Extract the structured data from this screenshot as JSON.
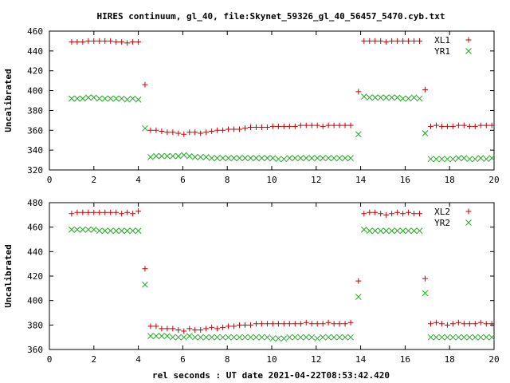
{
  "figure": {
    "title": "HIRES continuum, gl_40, file:Skynet_59326_gl_40_56457_5470.cyb.txt",
    "xlabel": "rel seconds : UT date 2021-04-22T08:53:42.420"
  },
  "colors": {
    "xl": "#cc0000",
    "yr": "#22aa22"
  },
  "chart_data": [
    {
      "type": "scatter",
      "title": "",
      "xlabel": "",
      "ylabel": "Uncalibrated",
      "xlim": [
        0,
        20
      ],
      "ylim": [
        320,
        460
      ],
      "xticks": [
        0,
        2,
        4,
        6,
        8,
        10,
        12,
        14,
        16,
        18,
        20
      ],
      "yticks": [
        320,
        340,
        360,
        380,
        400,
        420,
        440,
        460
      ],
      "legend": "top-right",
      "series": [
        {
          "name": "XL1",
          "marker": "plus",
          "x": [
            1.0,
            1.25,
            1.5,
            1.75,
            2.0,
            2.25,
            2.5,
            2.75,
            3.0,
            3.25,
            3.5,
            3.75,
            4.0,
            4.3,
            4.55,
            4.8,
            5.05,
            5.3,
            5.55,
            5.8,
            6.05,
            6.3,
            6.55,
            6.8,
            7.05,
            7.3,
            7.55,
            7.8,
            8.05,
            8.3,
            8.55,
            8.8,
            9.05,
            9.3,
            9.55,
            9.8,
            10.05,
            10.3,
            10.55,
            10.8,
            11.05,
            11.3,
            11.55,
            11.8,
            12.05,
            12.3,
            12.55,
            12.8,
            13.05,
            13.3,
            13.55,
            13.9,
            14.15,
            14.4,
            14.65,
            14.9,
            15.15,
            15.4,
            15.65,
            15.9,
            16.15,
            16.4,
            16.65,
            16.9,
            17.15,
            17.4,
            17.65,
            17.9,
            18.15,
            18.4,
            18.65,
            18.9,
            19.15,
            19.4,
            19.65,
            19.9
          ],
          "y": [
            449,
            449,
            449,
            450,
            450,
            450,
            450,
            450,
            449,
            449,
            448,
            449,
            449,
            406,
            360,
            360,
            359,
            358,
            358,
            357,
            356,
            358,
            358,
            357,
            358,
            359,
            360,
            360,
            361,
            361,
            361,
            362,
            363,
            363,
            363,
            363,
            364,
            364,
            364,
            364,
            364,
            365,
            365,
            365,
            365,
            364,
            365,
            365,
            365,
            365,
            365,
            399,
            450,
            450,
            450,
            450,
            449,
            450,
            450,
            450,
            450,
            450,
            450,
            401,
            364,
            365,
            364,
            364,
            364,
            365,
            365,
            364,
            364,
            365,
            365,
            365
          ]
        },
        {
          "name": "YR1",
          "marker": "cross",
          "x": [
            1.0,
            1.25,
            1.5,
            1.75,
            2.0,
            2.25,
            2.5,
            2.75,
            3.0,
            3.25,
            3.5,
            3.75,
            4.0,
            4.3,
            4.55,
            4.8,
            5.05,
            5.3,
            5.55,
            5.8,
            6.05,
            6.3,
            6.55,
            6.8,
            7.05,
            7.3,
            7.55,
            7.8,
            8.05,
            8.3,
            8.55,
            8.8,
            9.05,
            9.3,
            9.55,
            9.8,
            10.05,
            10.3,
            10.55,
            10.8,
            11.05,
            11.3,
            11.55,
            11.8,
            12.05,
            12.3,
            12.55,
            12.8,
            13.05,
            13.3,
            13.55,
            13.9,
            14.15,
            14.4,
            14.65,
            14.9,
            15.15,
            15.4,
            15.65,
            15.9,
            16.15,
            16.4,
            16.65,
            16.9,
            17.15,
            17.4,
            17.65,
            17.9,
            18.15,
            18.4,
            18.65,
            18.9,
            19.15,
            19.4,
            19.65,
            19.9
          ],
          "y": [
            392,
            392,
            392,
            393,
            393,
            392,
            392,
            392,
            392,
            392,
            391,
            392,
            391,
            362,
            333,
            334,
            334,
            334,
            334,
            334,
            335,
            334,
            333,
            333,
            333,
            332,
            332,
            332,
            332,
            332,
            332,
            332,
            332,
            332,
            332,
            332,
            332,
            331,
            331,
            332,
            332,
            332,
            332,
            332,
            332,
            332,
            332,
            332,
            332,
            332,
            332,
            356,
            394,
            393,
            393,
            393,
            393,
            393,
            393,
            392,
            392,
            393,
            392,
            357,
            331,
            331,
            331,
            331,
            331,
            332,
            332,
            331,
            331,
            332,
            331,
            332
          ]
        }
      ]
    },
    {
      "type": "scatter",
      "title": "",
      "xlabel": "rel seconds : UT date 2021-04-22T08:53:42.420",
      "ylabel": "Uncalibrated",
      "xlim": [
        0,
        20
      ],
      "ylim": [
        360,
        480
      ],
      "xticks": [
        0,
        2,
        4,
        6,
        8,
        10,
        12,
        14,
        16,
        18,
        20
      ],
      "yticks": [
        360,
        380,
        400,
        420,
        440,
        460,
        480
      ],
      "legend": "top-right",
      "series": [
        {
          "name": "XL2",
          "marker": "plus",
          "x": [
            1.0,
            1.25,
            1.5,
            1.75,
            2.0,
            2.25,
            2.5,
            2.75,
            3.0,
            3.25,
            3.5,
            3.75,
            4.0,
            4.3,
            4.55,
            4.8,
            5.05,
            5.3,
            5.55,
            5.8,
            6.05,
            6.3,
            6.55,
            6.8,
            7.05,
            7.3,
            7.55,
            7.8,
            8.05,
            8.3,
            8.55,
            8.8,
            9.05,
            9.3,
            9.55,
            9.8,
            10.05,
            10.3,
            10.55,
            10.8,
            11.05,
            11.3,
            11.55,
            11.8,
            12.05,
            12.3,
            12.55,
            12.8,
            13.05,
            13.3,
            13.55,
            13.9,
            14.15,
            14.4,
            14.65,
            14.9,
            15.15,
            15.4,
            15.65,
            15.9,
            16.15,
            16.4,
            16.65,
            16.9,
            17.15,
            17.4,
            17.65,
            17.9,
            18.15,
            18.4,
            18.65,
            18.9,
            19.15,
            19.4,
            19.65,
            19.9
          ],
          "y": [
            471,
            472,
            472,
            472,
            472,
            472,
            472,
            472,
            472,
            471,
            472,
            471,
            473,
            426,
            379,
            379,
            377,
            377,
            377,
            376,
            375,
            377,
            376,
            376,
            377,
            378,
            377,
            378,
            379,
            379,
            380,
            380,
            380,
            381,
            381,
            381,
            381,
            381,
            381,
            381,
            381,
            381,
            382,
            381,
            381,
            381,
            382,
            381,
            381,
            381,
            382,
            416,
            471,
            472,
            472,
            471,
            470,
            471,
            472,
            471,
            472,
            471,
            471,
            418,
            381,
            382,
            381,
            380,
            381,
            382,
            381,
            381,
            381,
            382,
            381,
            381
          ]
        },
        {
          "name": "YR2",
          "marker": "cross",
          "x": [
            1.0,
            1.25,
            1.5,
            1.75,
            2.0,
            2.25,
            2.5,
            2.75,
            3.0,
            3.25,
            3.5,
            3.75,
            4.0,
            4.3,
            4.55,
            4.8,
            5.05,
            5.3,
            5.55,
            5.8,
            6.05,
            6.3,
            6.55,
            6.8,
            7.05,
            7.3,
            7.55,
            7.8,
            8.05,
            8.3,
            8.55,
            8.8,
            9.05,
            9.3,
            9.55,
            9.8,
            10.05,
            10.3,
            10.55,
            10.8,
            11.05,
            11.3,
            11.55,
            11.8,
            12.05,
            12.3,
            12.55,
            12.8,
            13.05,
            13.3,
            13.55,
            13.9,
            14.15,
            14.4,
            14.65,
            14.9,
            15.15,
            15.4,
            15.65,
            15.9,
            16.15,
            16.4,
            16.65,
            16.9,
            17.15,
            17.4,
            17.65,
            17.9,
            18.15,
            18.4,
            18.65,
            18.9,
            19.15,
            19.4,
            19.65,
            19.9
          ],
          "y": [
            458,
            458,
            458,
            458,
            458,
            457,
            457,
            457,
            457,
            457,
            457,
            457,
            457,
            413,
            371,
            371,
            371,
            371,
            370,
            370,
            370,
            371,
            370,
            370,
            370,
            370,
            370,
            370,
            370,
            370,
            370,
            370,
            370,
            370,
            370,
            370,
            369,
            369,
            369,
            370,
            370,
            370,
            370,
            370,
            369,
            370,
            370,
            370,
            370,
            370,
            370,
            403,
            458,
            457,
            457,
            457,
            457,
            457,
            457,
            457,
            457,
            457,
            457,
            406,
            370,
            370,
            370,
            370,
            370,
            370,
            370,
            370,
            370,
            370,
            370,
            370
          ]
        }
      ]
    }
  ]
}
